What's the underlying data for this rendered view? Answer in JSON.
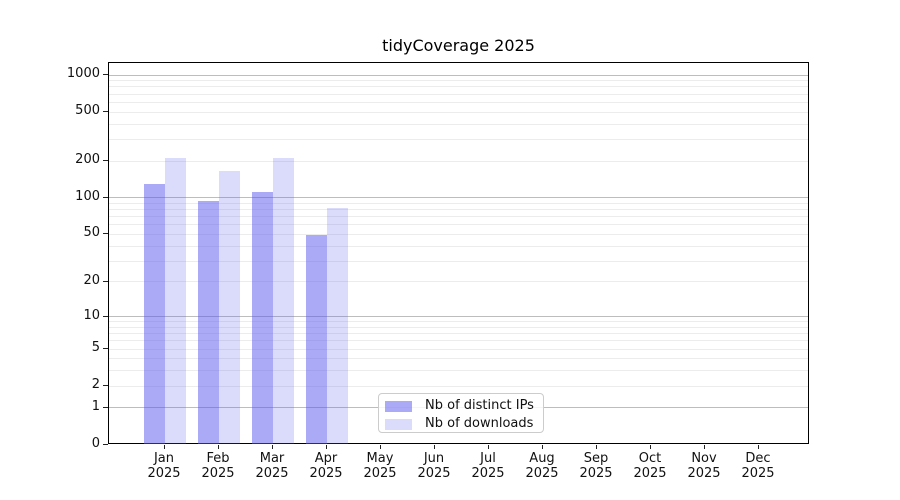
{
  "chart_data": {
    "type": "bar",
    "title": "tidyCoverage 2025",
    "categories": [
      "Jan 2025",
      "Feb 2025",
      "Mar 2025",
      "Apr 2025",
      "May 2025",
      "Jun 2025",
      "Jul 2025",
      "Aug 2025",
      "Sep 2025",
      "Oct 2025",
      "Nov 2025",
      "Dec 2025"
    ],
    "series": [
      {
        "name": "Nb of distinct IPs",
        "color": "rgba(85,85,238,0.5)",
        "solid_color": "#aaaaf6",
        "values": [
          130,
          95,
          112,
          49,
          null,
          null,
          null,
          null,
          null,
          null,
          null,
          null
        ]
      },
      {
        "name": "Nb of downloads",
        "color": "rgba(85,85,238,0.21)",
        "solid_color": "#dbdbf9",
        "values": [
          210,
          166,
          210,
          82,
          null,
          null,
          null,
          null,
          null,
          null,
          null,
          null
        ]
      }
    ],
    "xlabel": "",
    "ylabel": "",
    "yscale": "log10(value+1)",
    "yticks": [
      0,
      1,
      2,
      5,
      10,
      20,
      50,
      100,
      200,
      500,
      1000
    ],
    "ylim": [
      0,
      1240
    ],
    "grid": {
      "horizontal": true,
      "minor_log_lines": true,
      "vertical": false
    },
    "legend": {
      "position": "inside-bottom-center",
      "entries": [
        "Nb of distinct IPs",
        "Nb of downloads"
      ]
    }
  }
}
